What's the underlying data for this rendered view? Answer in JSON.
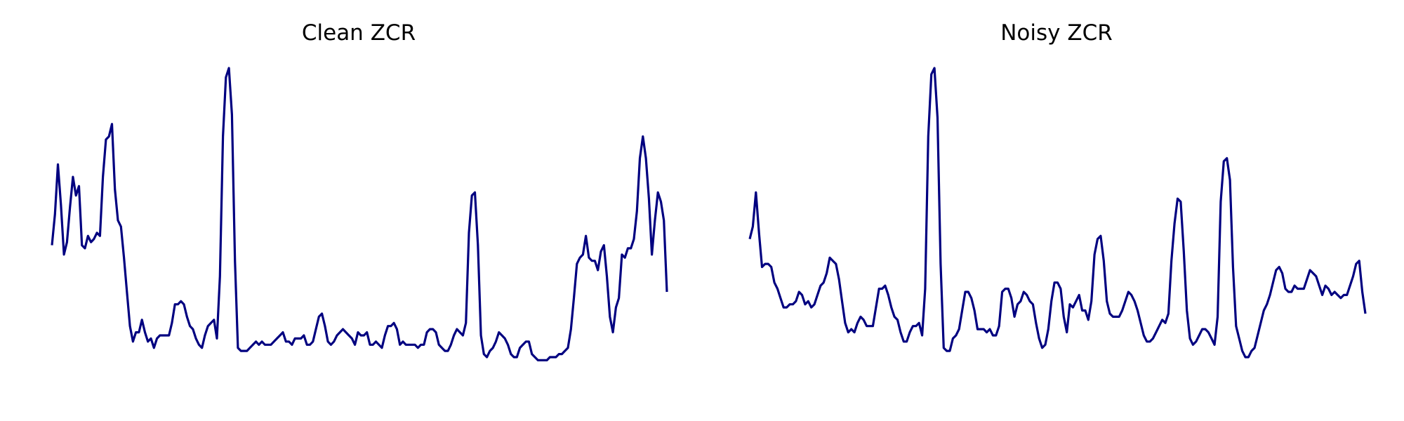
{
  "colors": {
    "line": "#000080",
    "background": "#ffffff"
  },
  "chart_data": [
    {
      "type": "line",
      "title": "Clean ZCR",
      "axis": "off",
      "grid": false,
      "ylim": [
        0,
        1
      ],
      "series": [
        {
          "color": "#000080",
          "values": [
            0.43,
            0.53,
            0.69,
            0.56,
            0.4,
            0.44,
            0.55,
            0.65,
            0.59,
            0.62,
            0.43,
            0.42,
            0.46,
            0.44,
            0.45,
            0.47,
            0.46,
            0.65,
            0.77,
            0.78,
            0.82,
            0.61,
            0.51,
            0.49,
            0.39,
            0.28,
            0.17,
            0.12,
            0.15,
            0.15,
            0.19,
            0.15,
            0.12,
            0.13,
            0.1,
            0.13,
            0.14,
            0.14,
            0.14,
            0.14,
            0.18,
            0.24,
            0.24,
            0.25,
            0.24,
            0.2,
            0.17,
            0.16,
            0.13,
            0.11,
            0.1,
            0.14,
            0.17,
            0.18,
            0.19,
            0.13,
            0.33,
            0.78,
            0.97,
            1.0,
            0.85,
            0.38,
            0.1,
            0.09,
            0.09,
            0.09,
            0.1,
            0.11,
            0.12,
            0.11,
            0.12,
            0.11,
            0.11,
            0.11,
            0.12,
            0.13,
            0.14,
            0.15,
            0.12,
            0.12,
            0.11,
            0.13,
            0.13,
            0.13,
            0.14,
            0.11,
            0.11,
            0.12,
            0.16,
            0.2,
            0.21,
            0.17,
            0.12,
            0.11,
            0.12,
            0.14,
            0.15,
            0.16,
            0.15,
            0.14,
            0.13,
            0.11,
            0.15,
            0.14,
            0.14,
            0.15,
            0.11,
            0.11,
            0.12,
            0.11,
            0.1,
            0.14,
            0.17,
            0.17,
            0.18,
            0.16,
            0.11,
            0.12,
            0.11,
            0.11,
            0.11,
            0.11,
            0.1,
            0.11,
            0.11,
            0.15,
            0.16,
            0.16,
            0.15,
            0.11,
            0.1,
            0.09,
            0.09,
            0.11,
            0.14,
            0.16,
            0.15,
            0.14,
            0.18,
            0.47,
            0.59,
            0.6,
            0.43,
            0.14,
            0.08,
            0.07,
            0.09,
            0.1,
            0.12,
            0.15,
            0.14,
            0.13,
            0.11,
            0.08,
            0.07,
            0.07,
            0.1,
            0.11,
            0.12,
            0.12,
            0.08,
            0.07,
            0.06,
            0.06,
            0.06,
            0.06,
            0.07,
            0.07,
            0.07,
            0.08,
            0.08,
            0.09,
            0.1,
            0.16,
            0.26,
            0.37,
            0.39,
            0.4,
            0.46,
            0.39,
            0.38,
            0.38,
            0.35,
            0.41,
            0.43,
            0.33,
            0.2,
            0.15,
            0.23,
            0.26,
            0.4,
            0.39,
            0.42,
            0.42,
            0.45,
            0.54,
            0.71,
            0.78,
            0.71,
            0.58,
            0.4,
            0.51,
            0.6,
            0.57,
            0.51,
            0.28
          ]
        }
      ]
    },
    {
      "type": "line",
      "title": "Noisy ZCR",
      "axis": "off",
      "grid": false,
      "ylim": [
        0,
        1
      ],
      "series": [
        {
          "color": "#000080",
          "values": [
            0.45,
            0.49,
            0.6,
            0.47,
            0.36,
            0.37,
            0.37,
            0.36,
            0.31,
            0.29,
            0.26,
            0.23,
            0.23,
            0.24,
            0.24,
            0.25,
            0.28,
            0.27,
            0.24,
            0.25,
            0.23,
            0.24,
            0.27,
            0.3,
            0.31,
            0.34,
            0.39,
            0.38,
            0.37,
            0.32,
            0.25,
            0.18,
            0.15,
            0.16,
            0.15,
            0.18,
            0.2,
            0.19,
            0.17,
            0.17,
            0.17,
            0.23,
            0.29,
            0.29,
            0.3,
            0.27,
            0.23,
            0.2,
            0.19,
            0.15,
            0.12,
            0.12,
            0.15,
            0.17,
            0.17,
            0.18,
            0.14,
            0.29,
            0.78,
            0.98,
            1.0,
            0.84,
            0.37,
            0.1,
            0.09,
            0.09,
            0.13,
            0.14,
            0.16,
            0.22,
            0.28,
            0.28,
            0.26,
            0.22,
            0.16,
            0.16,
            0.16,
            0.15,
            0.16,
            0.14,
            0.14,
            0.17,
            0.28,
            0.29,
            0.29,
            0.26,
            0.2,
            0.24,
            0.25,
            0.28,
            0.27,
            0.25,
            0.24,
            0.18,
            0.13,
            0.1,
            0.11,
            0.16,
            0.25,
            0.31,
            0.31,
            0.29,
            0.2,
            0.15,
            0.24,
            0.23,
            0.25,
            0.27,
            0.22,
            0.22,
            0.19,
            0.25,
            0.4,
            0.45,
            0.46,
            0.38,
            0.25,
            0.21,
            0.2,
            0.2,
            0.2,
            0.22,
            0.25,
            0.28,
            0.27,
            0.25,
            0.22,
            0.18,
            0.14,
            0.12,
            0.12,
            0.13,
            0.15,
            0.17,
            0.19,
            0.18,
            0.21,
            0.38,
            0.5,
            0.58,
            0.57,
            0.41,
            0.22,
            0.13,
            0.11,
            0.12,
            0.14,
            0.16,
            0.16,
            0.15,
            0.13,
            0.11,
            0.2,
            0.57,
            0.7,
            0.71,
            0.64,
            0.36,
            0.17,
            0.13,
            0.09,
            0.07,
            0.07,
            0.09,
            0.1,
            0.14,
            0.18,
            0.22,
            0.24,
            0.27,
            0.31,
            0.35,
            0.36,
            0.34,
            0.29,
            0.28,
            0.28,
            0.3,
            0.29,
            0.29,
            0.29,
            0.32,
            0.35,
            0.34,
            0.33,
            0.3,
            0.27,
            0.3,
            0.29,
            0.27,
            0.28,
            0.27,
            0.26,
            0.27,
            0.27,
            0.3,
            0.33,
            0.37,
            0.38,
            0.28,
            0.21
          ]
        }
      ]
    }
  ]
}
